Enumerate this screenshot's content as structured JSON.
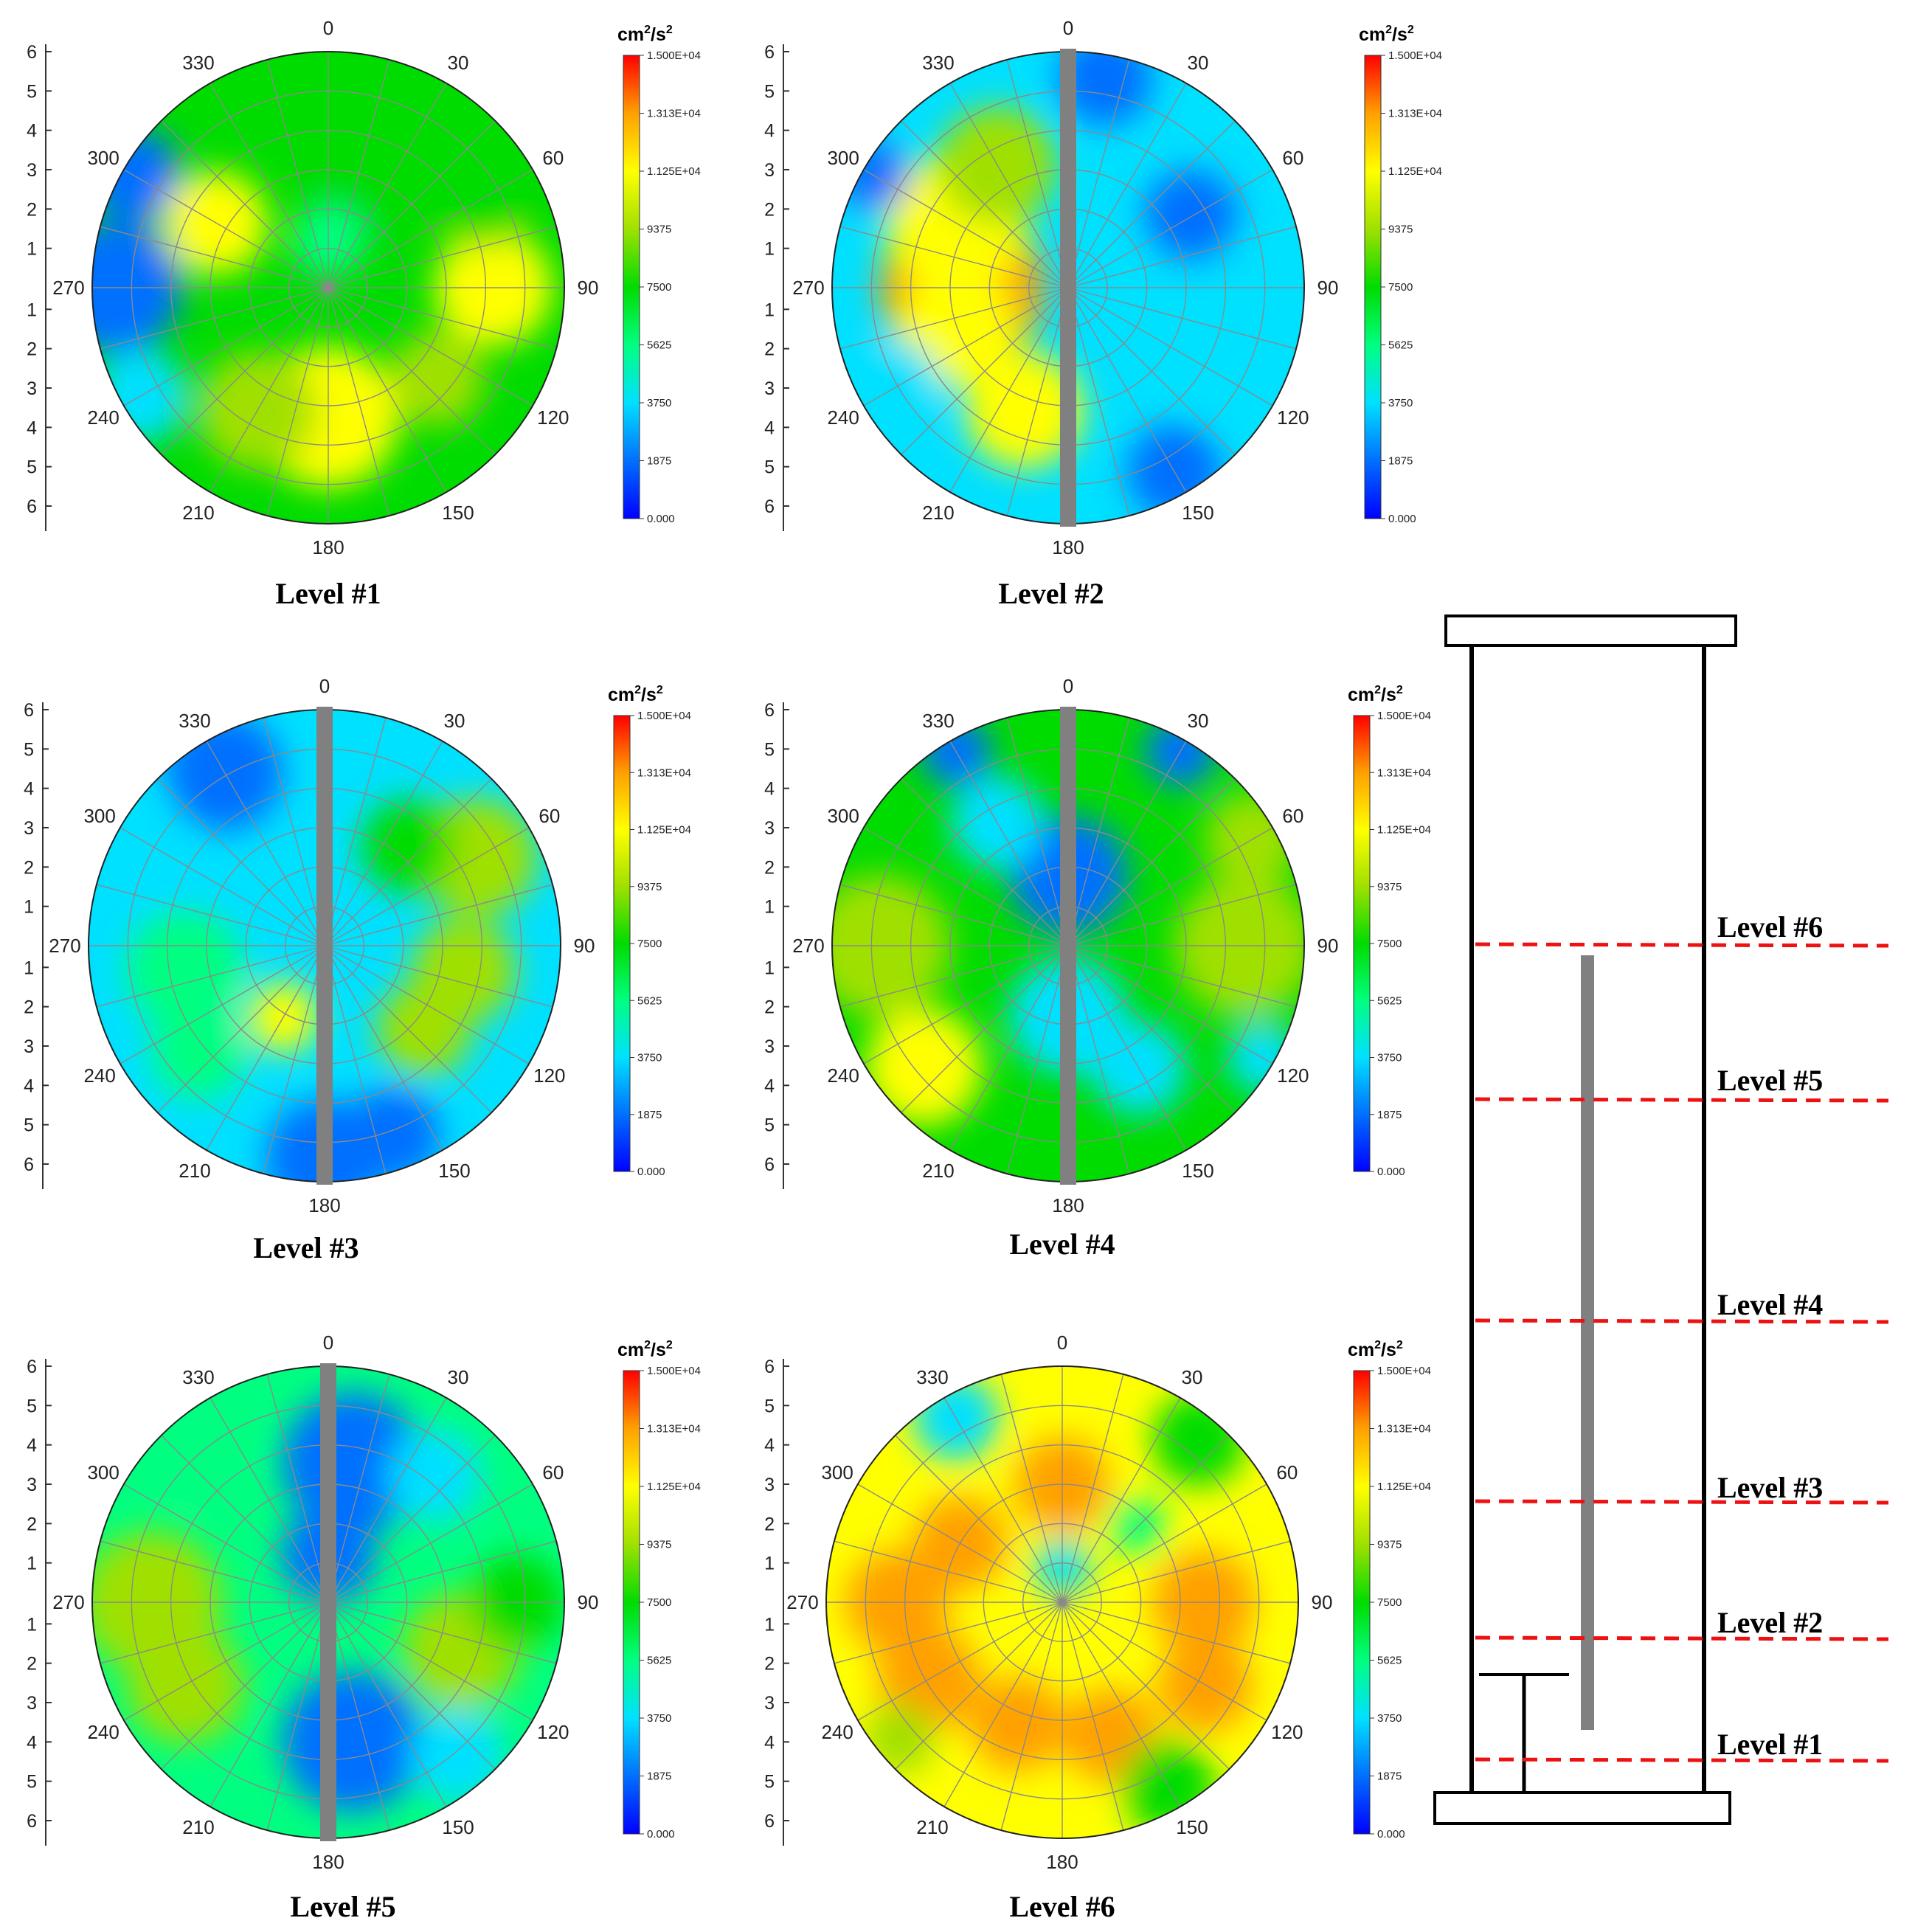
{
  "figure": {
    "colorbar": {
      "unit_base": "cm",
      "unit_mid": "/s",
      "unit_sup": "2",
      "ticks": [
        "1.500E+04",
        "1.313E+04",
        "1.125E+04",
        "9375",
        "7500",
        "5625",
        "3750",
        "1875",
        "0.000"
      ],
      "colors": [
        "#0000ff",
        "#0070ff",
        "#00e0ff",
        "#00ff80",
        "#00dc00",
        "#a0e000",
        "#ffff00",
        "#ffa000",
        "#ff0000"
      ]
    },
    "angle_labels": [
      "0",
      "30",
      "60",
      "90",
      "120",
      "150",
      "180",
      "210",
      "240",
      "270",
      "300",
      "330"
    ],
    "radial_labels_top": [
      "6",
      "5",
      "4",
      "3",
      "2",
      "1"
    ],
    "radial_labels_bottom": [
      "1",
      "2",
      "3",
      "4",
      "5",
      "6"
    ],
    "panels": [
      {
        "caption": "Level #1",
        "has_rod": false
      },
      {
        "caption": "Level #2",
        "has_rod": true
      },
      {
        "caption": "Level #3",
        "has_rod": true
      },
      {
        "caption": "Level #4",
        "has_rod": true
      },
      {
        "caption": "Level #5",
        "has_rod": true
      },
      {
        "caption": "Level #6",
        "has_rod": false
      }
    ],
    "schematic": {
      "levels": [
        "Level #6",
        "Level #5",
        "Level #4",
        "Level #3",
        "Level #2",
        "Level #1"
      ]
    }
  },
  "chart_data": {
    "type": "heatmap",
    "plot_kind": "polar contour",
    "angle_range_deg": [
      0,
      360
    ],
    "radial_range": [
      0,
      6
    ],
    "color_range": [
      0,
      15000
    ],
    "color_unit": "cm2/s2",
    "colorbar_ticks": [
      15000,
      13130,
      11250,
      9375,
      7500,
      5625,
      3750,
      1875,
      0
    ],
    "panels": [
      {
        "name": "Level #1",
        "description_level": "green-yellow field, ~8000-10000 overall, low near wall at 270-300, peaks ~12000 near 90 and 300"
      },
      {
        "name": "Level #2",
        "description_level": "left half ~8000-13000 with peak near 270; right half ~2000-5000"
      },
      {
        "name": "Level #3",
        "description_level": "mostly ~3000-6000, ~8000-11000 at 30-120 and near 200"
      },
      {
        "name": "Level #4",
        "description_level": "~7000-10000 outer left and right, ~3000-5000 near center"
      },
      {
        "name": "Level #5",
        "description_level": "~7000-10000 left half and 90-120; ~1000-3000 at 0-30 and 150-180"
      },
      {
        "name": "Level #6",
        "description_level": "~11000-14000 ring pattern, ~6000-8000 near center and outer rim"
      }
    ]
  }
}
